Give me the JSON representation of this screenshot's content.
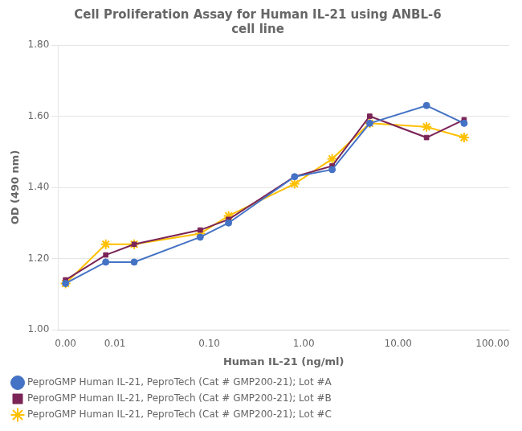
{
  "chart_data": {
    "type": "line",
    "title": "Cell Proliferation Assay for Human IL-21 using ANBL-6\ncell line",
    "x_label": "Human IL-21 (ng/ml)",
    "y_label": "OD (490 nm)",
    "log": "x",
    "grid": "y",
    "legend": "bottom",
    "xlim": [
      0.0025,
      150.0
    ],
    "xticks": [
      {
        "value": 0.003,
        "label": "0.00"
      },
      0.01,
      {
        "value": 0.1,
        "label": "0.10"
      },
      {
        "value": 1.0,
        "label": "1.00"
      },
      {
        "value": 10.0,
        "label": "10.00"
      },
      {
        "value": 100.0,
        "label": "100.00"
      }
    ],
    "ylim": [
      1.0,
      1.8
    ],
    "yticks": [
      {
        "value": 1.0,
        "label": "1.00"
      },
      {
        "value": 1.2,
        "label": "1.20"
      },
      {
        "value": 1.4,
        "label": "1.40"
      },
      {
        "value": 1.6,
        "label": "1.60"
      },
      {
        "value": 1.8,
        "label": "1.80"
      }
    ],
    "x": [
      0.003,
      0.008,
      0.016,
      0.08,
      0.16,
      0.8,
      2.0,
      5.0,
      20.0,
      50.0
    ],
    "series": [
      {
        "name": "PeproGMP Human IL-21, PeproTech (Cat # GMP200-21); Lot #A",
        "color": "#4472C4",
        "marker": "circle",
        "values": [
          1.13,
          1.19,
          1.19,
          1.26,
          1.3,
          1.43,
          1.45,
          1.58,
          1.63,
          1.58
        ]
      },
      {
        "name": "PeproGMP Human IL-21, PeproTech (Cat # GMP200-21); Lot #B",
        "color": "#7B2457",
        "marker": "square",
        "values": [
          1.14,
          1.21,
          1.24,
          1.28,
          1.31,
          1.43,
          1.46,
          1.6,
          1.54,
          1.59
        ]
      },
      {
        "name": "PeproGMP Human IL-21, PeproTech (Cat # GMP200-21); Lot #C",
        "color": "#FFC000",
        "marker": "star",
        "values": [
          1.13,
          1.24,
          1.24,
          1.27,
          1.32,
          1.41,
          1.48,
          1.58,
          1.57,
          1.54
        ]
      }
    ]
  }
}
